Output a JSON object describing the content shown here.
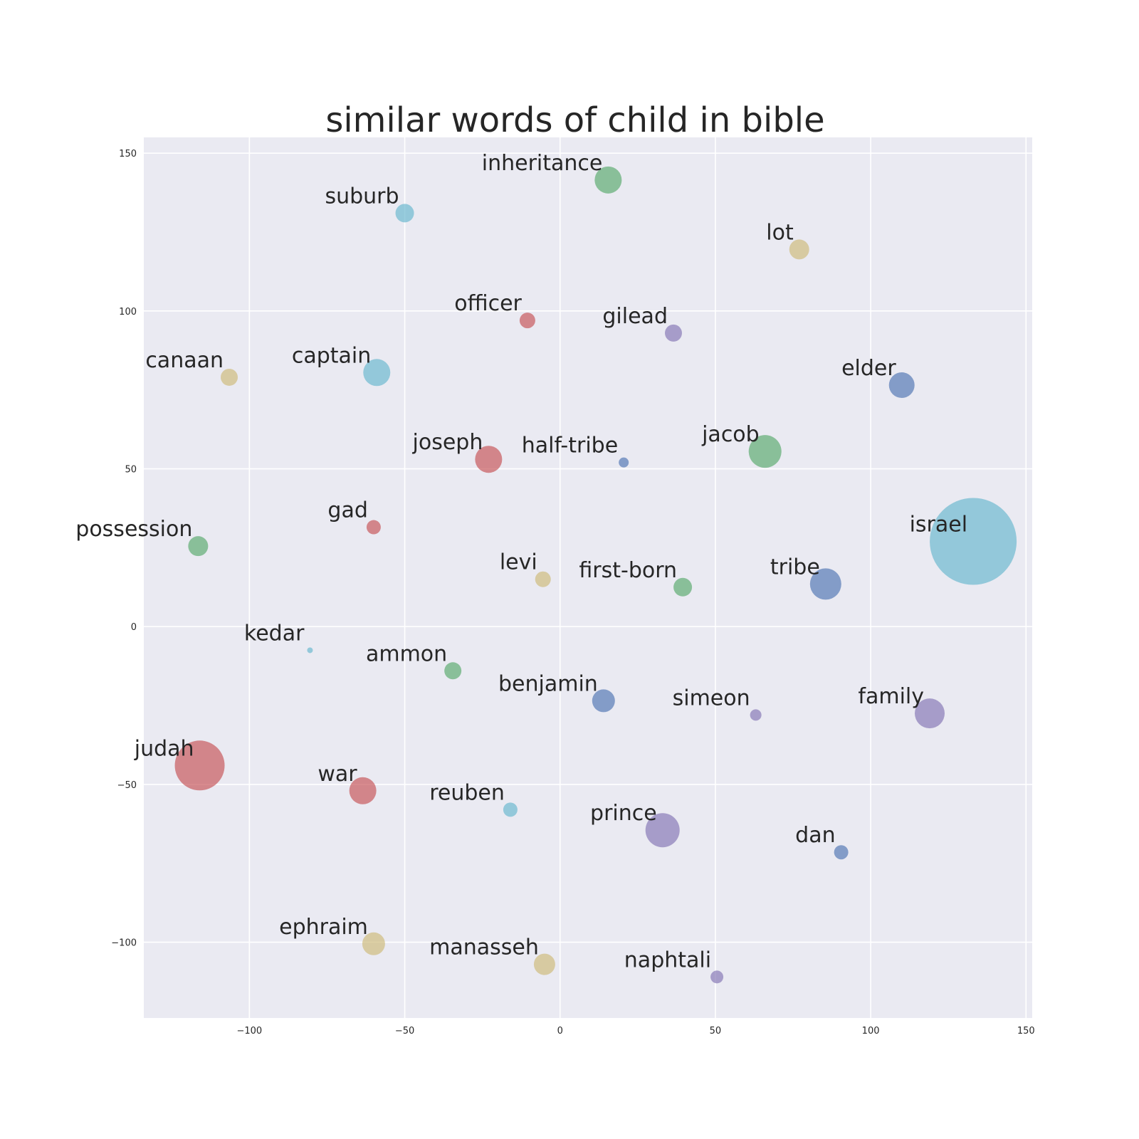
{
  "chart_data": {
    "type": "scatter",
    "title": "similar words of child in bible",
    "xlabel": "",
    "ylabel": "",
    "xlim": [
      -134,
      152
    ],
    "ylim": [
      -124,
      155
    ],
    "xticks": [
      -100,
      -50,
      0,
      50,
      100,
      150
    ],
    "yticks": [
      -100,
      -50,
      0,
      50,
      100,
      150
    ],
    "grid": true,
    "colors": {
      "background": "#eaeaf2",
      "grid": "#ffffff",
      "blue": "#4c72b0",
      "green": "#55a868",
      "red": "#c44e52",
      "purple": "#8172b2",
      "yellow": "#ccb974",
      "cyan": "#64b5cd"
    },
    "points": [
      {
        "label": "inheritance",
        "x": 15.5,
        "y": 141.5,
        "size": 19,
        "color": "green"
      },
      {
        "label": "suburb",
        "x": -50,
        "y": 131,
        "size": 13,
        "color": "cyan"
      },
      {
        "label": "lot",
        "x": 77,
        "y": 119.5,
        "size": 14,
        "color": "yellow"
      },
      {
        "label": "officer",
        "x": -10.5,
        "y": 97,
        "size": 11,
        "color": "red"
      },
      {
        "label": "gilead",
        "x": 36.5,
        "y": 93,
        "size": 12,
        "color": "purple"
      },
      {
        "label": "canaan",
        "x": -106.5,
        "y": 79,
        "size": 12,
        "color": "yellow"
      },
      {
        "label": "captain",
        "x": -59,
        "y": 80.5,
        "size": 19,
        "color": "cyan"
      },
      {
        "label": "elder",
        "x": 110,
        "y": 76.5,
        "size": 18,
        "color": "blue"
      },
      {
        "label": "joseph",
        "x": -23,
        "y": 53,
        "size": 19,
        "color": "red"
      },
      {
        "label": "half-tribe",
        "x": 20.5,
        "y": 52,
        "size": 7,
        "color": "blue"
      },
      {
        "label": "jacob",
        "x": 66,
        "y": 55.5,
        "size": 23,
        "color": "green"
      },
      {
        "label": "israel",
        "x": 133,
        "y": 27,
        "size": 61,
        "color": "cyan"
      },
      {
        "label": "gad",
        "x": -60,
        "y": 31.5,
        "size": 10,
        "color": "red"
      },
      {
        "label": "possession",
        "x": -116.5,
        "y": 25.5,
        "size": 14,
        "color": "green"
      },
      {
        "label": "levi",
        "x": -5.5,
        "y": 15,
        "size": 11,
        "color": "yellow"
      },
      {
        "label": "first-born",
        "x": 39.5,
        "y": 12.5,
        "size": 13,
        "color": "green"
      },
      {
        "label": "tribe",
        "x": 85.5,
        "y": 13.5,
        "size": 22,
        "color": "blue"
      },
      {
        "label": "kedar",
        "x": -80.5,
        "y": -7.5,
        "size": 4,
        "color": "cyan"
      },
      {
        "label": "ammon",
        "x": -34.5,
        "y": -14,
        "size": 12,
        "color": "green"
      },
      {
        "label": "benjamin",
        "x": 14,
        "y": -23.5,
        "size": 16,
        "color": "blue"
      },
      {
        "label": "simeon",
        "x": 63,
        "y": -28,
        "size": 8,
        "color": "purple"
      },
      {
        "label": "family",
        "x": 119,
        "y": -27.5,
        "size": 21,
        "color": "purple"
      },
      {
        "label": "judah",
        "x": -116,
        "y": -44,
        "size": 35,
        "color": "red"
      },
      {
        "label": "war",
        "x": -63.5,
        "y": -52,
        "size": 19,
        "color": "red"
      },
      {
        "label": "reuben",
        "x": -16,
        "y": -58,
        "size": 10,
        "color": "cyan"
      },
      {
        "label": "prince",
        "x": 33,
        "y": -64.5,
        "size": 24,
        "color": "purple"
      },
      {
        "label": "dan",
        "x": 90.5,
        "y": -71.5,
        "size": 10,
        "color": "blue"
      },
      {
        "label": "ephraim",
        "x": -60,
        "y": -100.5,
        "size": 16,
        "color": "yellow"
      },
      {
        "label": "manasseh",
        "x": -5,
        "y": -107,
        "size": 15,
        "color": "yellow"
      },
      {
        "label": "naphtali",
        "x": 50.5,
        "y": -111,
        "size": 9,
        "color": "purple"
      }
    ]
  }
}
